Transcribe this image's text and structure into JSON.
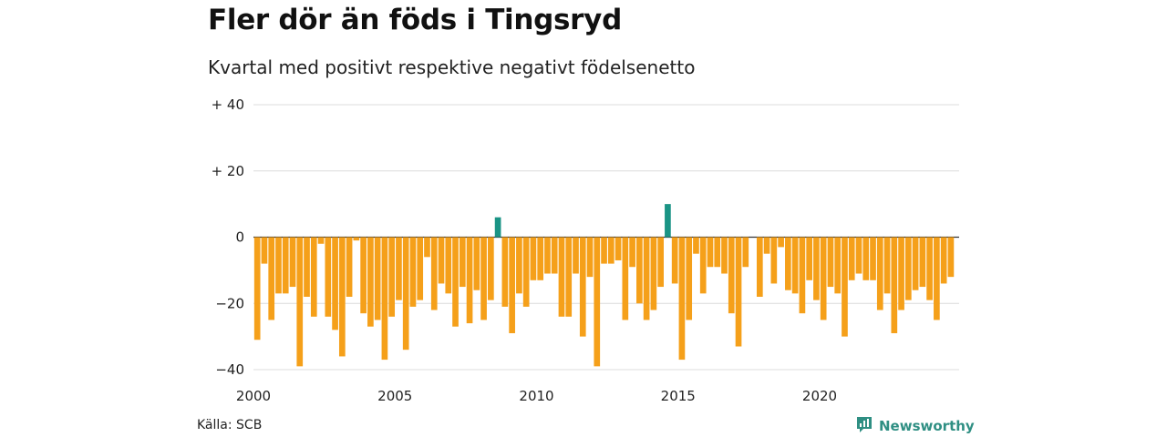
{
  "chart_data": {
    "type": "bar",
    "title": "Fler dör än föds i Tingsryd",
    "subtitle": "Kvartal med positivt respektive negativt födelsenetto",
    "ylim": [
      -40,
      40
    ],
    "yticks": [
      {
        "value": 40,
        "label": "+ 40"
      },
      {
        "value": 20,
        "label": "+ 20"
      },
      {
        "value": 0,
        "label": "0"
      },
      {
        "value": -20,
        "label": "−20"
      },
      {
        "value": -40,
        "label": "−40"
      }
    ],
    "xticks": [
      {
        "value": 2000,
        "label": "2000"
      },
      {
        "value": 2005,
        "label": "2005"
      },
      {
        "value": 2010,
        "label": "2010"
      },
      {
        "value": 2015,
        "label": "2015"
      },
      {
        "value": 2020,
        "label": "2020"
      }
    ],
    "start_year": 2000,
    "colors": {
      "positive": "#1a9485",
      "negative": "#f5a01a",
      "grid": "#dcdcdc",
      "axis": "#333333"
    },
    "values": [
      -31,
      -8,
      -25,
      -17,
      -17,
      -15,
      -39,
      -18,
      -24,
      -2,
      -24,
      -28,
      -36,
      -18,
      -1,
      -23,
      -27,
      -25,
      -37,
      -24,
      -19,
      -34,
      -21,
      -19,
      -6,
      -22,
      -14,
      -17,
      -27,
      -15,
      -26,
      -16,
      -25,
      -19,
      6,
      -21,
      -29,
      -17,
      -21,
      -13,
      -13,
      -11,
      -11,
      -24,
      -24,
      -11,
      -30,
      -12,
      -39,
      -8,
      -8,
      -7,
      -25,
      -9,
      -20,
      -25,
      -22,
      -15,
      10,
      -14,
      -37,
      -25,
      -5,
      -17,
      -9,
      -9,
      -11,
      -23,
      -33,
      -9,
      0,
      -18,
      -5,
      -14,
      -3,
      -16,
      -17,
      -23,
      -13,
      -19,
      -25,
      -15,
      -17,
      -30,
      -13,
      -11,
      -13,
      -13,
      -22,
      -17,
      -29,
      -22,
      -19,
      -16,
      -15,
      -19,
      -25,
      -14,
      -12
    ]
  },
  "source": "Källa: SCB",
  "brand": {
    "name": "Newsworthy",
    "icon": "newsworthy-logo-icon",
    "color": "#2f8f83"
  }
}
